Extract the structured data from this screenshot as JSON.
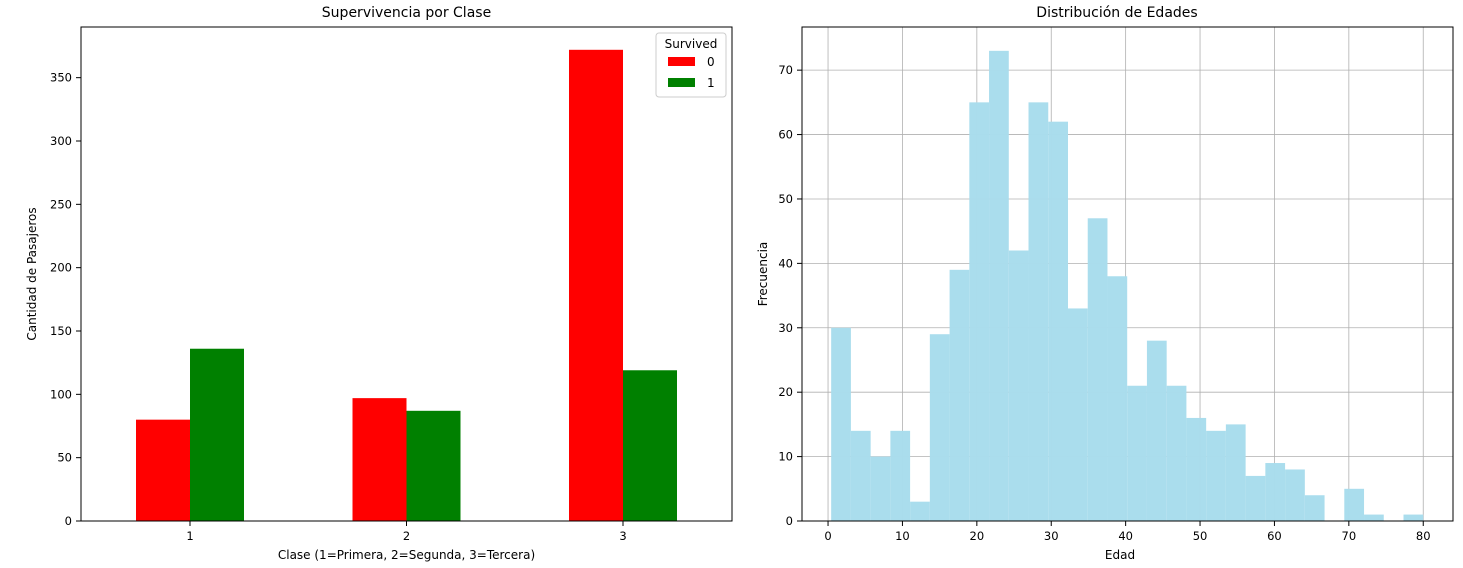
{
  "chart_data": [
    {
      "type": "bar",
      "title": "Supervivencia por Clase",
      "xlabel": "Clase (1=Primera, 2=Segunda, 3=Tercera)",
      "ylabel": "Cantidad de Pasajeros",
      "categories": [
        "1",
        "2",
        "3"
      ],
      "series": [
        {
          "name": "0",
          "color": "#ff0000",
          "values": [
            80,
            97,
            372
          ]
        },
        {
          "name": "1",
          "color": "#008000",
          "values": [
            136,
            87,
            119
          ]
        }
      ],
      "ylim": [
        0,
        390
      ],
      "yticks": [
        0,
        50,
        100,
        150,
        200,
        250,
        300,
        350
      ],
      "grid": false,
      "legend": {
        "title": "Survived",
        "position": "top-right"
      }
    },
    {
      "type": "bar",
      "subtype": "histogram",
      "title": "Distribución de Edades",
      "xlabel": "Edad",
      "ylabel": "Frecuencia",
      "color": "#a8dced",
      "bin_range": [
        0.42,
        80
      ],
      "bins": 30,
      "values": [
        30,
        14,
        10,
        14,
        3,
        29,
        39,
        65,
        73,
        42,
        65,
        62,
        33,
        47,
        38,
        21,
        28,
        21,
        16,
        14,
        15,
        7,
        9,
        8,
        4,
        0,
        5,
        1,
        0,
        1
      ],
      "xlim": [
        -3.5,
        84
      ],
      "ylim": [
        0,
        76.7
      ],
      "xticks": [
        0,
        10,
        20,
        30,
        40,
        50,
        60,
        70,
        80
      ],
      "yticks": [
        0,
        10,
        20,
        30,
        40,
        50,
        60,
        70
      ],
      "grid": true
    }
  ]
}
